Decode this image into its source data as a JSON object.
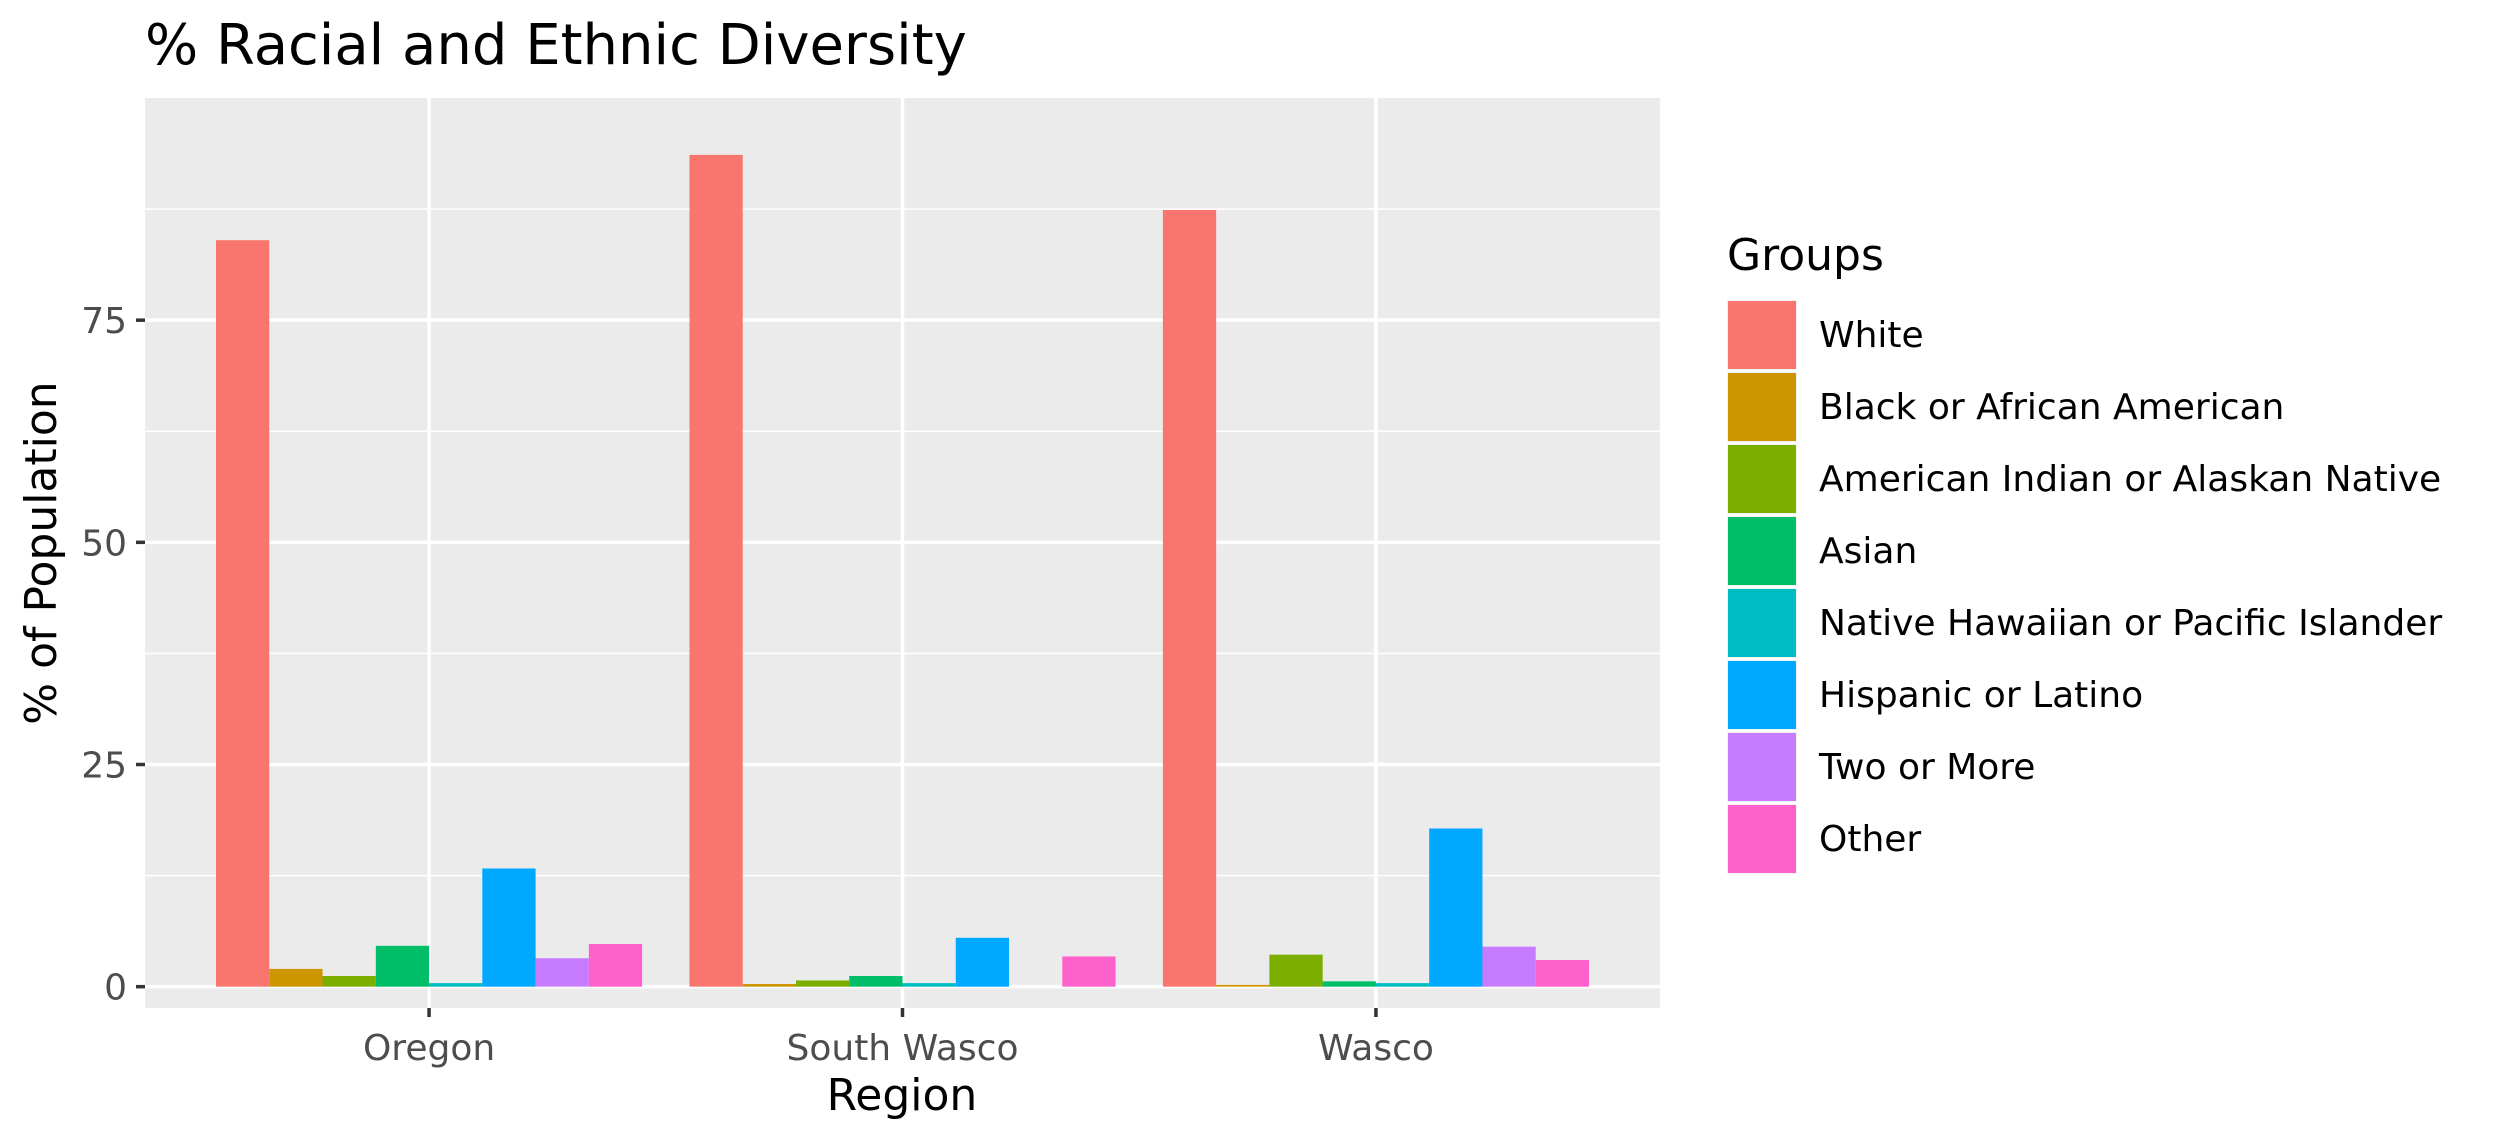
{
  "chart_data": {
    "type": "bar",
    "title": "% Racial and Ethnic Diversity",
    "xlabel": "Region",
    "ylabel": "% of Population",
    "categories": [
      "Oregon",
      "South Wasco",
      "Wasco"
    ],
    "ylim": [
      -2.4,
      100
    ],
    "yticks": [
      0,
      25,
      50,
      75
    ],
    "grid": true,
    "legend": {
      "title": "Groups",
      "position": "right"
    },
    "series": [
      {
        "name": "White",
        "color": "#F8766D",
        "values": [
          84.0,
          93.6,
          87.4
        ]
      },
      {
        "name": "Black or African American",
        "color": "#CD9600",
        "values": [
          2.0,
          0.3,
          0.2
        ]
      },
      {
        "name": "American Indian or Alaskan Native",
        "color": "#7CAE00",
        "values": [
          1.2,
          0.7,
          3.6
        ]
      },
      {
        "name": "Asian",
        "color": "#00BE67",
        "values": [
          4.6,
          1.2,
          0.6
        ]
      },
      {
        "name": "Native Hawaiian or Pacific Islander",
        "color": "#00BFC4",
        "values": [
          0.4,
          0.4,
          0.4
        ]
      },
      {
        "name": "Hispanic or Latino",
        "color": "#00A9FF",
        "values": [
          13.3,
          5.5,
          17.8
        ]
      },
      {
        "name": "Two or More",
        "color": "#C77CFF",
        "values": [
          3.2,
          0.0,
          4.5
        ]
      },
      {
        "name": "Other",
        "color": "#FF61CC",
        "values": [
          4.8,
          3.4,
          3.0
        ]
      }
    ]
  }
}
